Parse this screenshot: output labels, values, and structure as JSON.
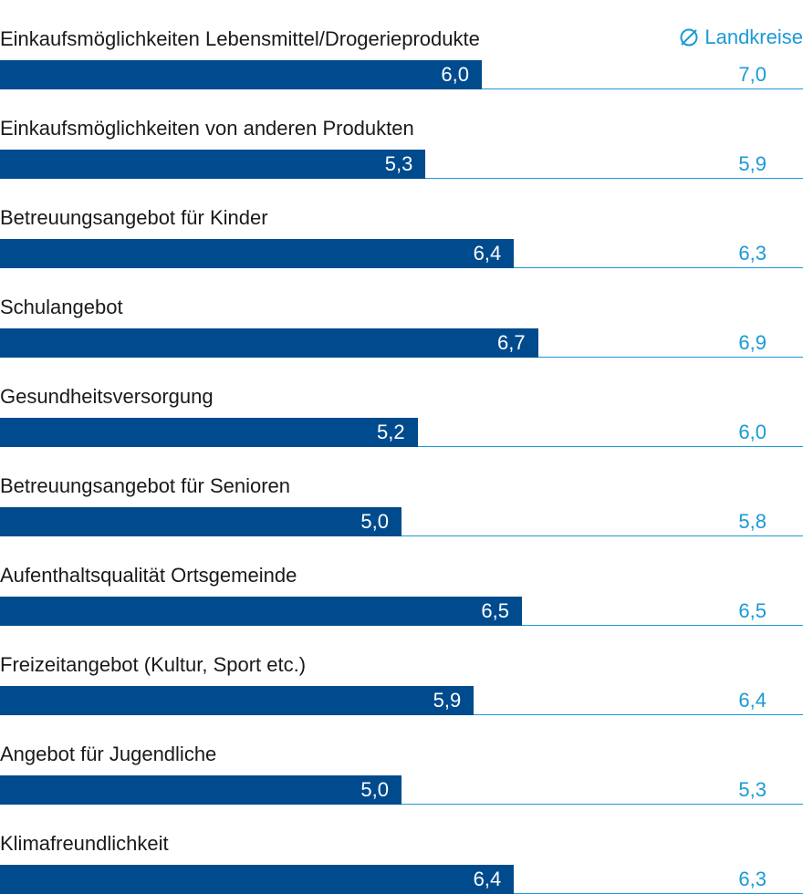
{
  "legend": {
    "label": "Landkreise",
    "icon": "diameter-avg-icon"
  },
  "colors": {
    "bar": "#004b8d",
    "accent": "#1a9ad6",
    "text": "#1a1a1a"
  },
  "chart_data": {
    "type": "bar",
    "orientation": "horizontal",
    "title": "",
    "xlim": [
      0,
      10
    ],
    "grid": false,
    "legend_position": "top-right",
    "categories": [
      "Einkaufsmöglichkeiten Lebensmittel/Drogerieprodukte",
      "Einkaufsmöglichkeiten von anderen Produkten",
      "Betreuungsangebot für Kinder",
      "Schulangebot",
      "Gesundheitsversorgung",
      "Betreuungsangebot für Senioren",
      "Aufenthaltsqualität Ortsgemeinde",
      "Freizeitangebot (Kultur, Sport etc.)",
      "Angebot für Jugendliche",
      "Klimafreundlichkeit"
    ],
    "values": [
      6.0,
      5.3,
      6.4,
      6.7,
      5.2,
      5.0,
      6.5,
      5.9,
      5.0,
      6.4
    ],
    "value_labels": [
      "6,0",
      "5,3",
      "6,4",
      "6,7",
      "5,2",
      "5,0",
      "6,5",
      "5,9",
      "5,0",
      "6,4"
    ],
    "comparison": {
      "name": "Landkreise",
      "values": [
        7.0,
        5.9,
        6.3,
        6.9,
        6.0,
        5.8,
        6.5,
        6.4,
        5.3,
        6.3
      ],
      "value_labels": [
        "7,0",
        "5,9",
        "6,3",
        "6,9",
        "6,0",
        "5,8",
        "6,5",
        "6,4",
        "5,3",
        "6,3"
      ]
    }
  }
}
